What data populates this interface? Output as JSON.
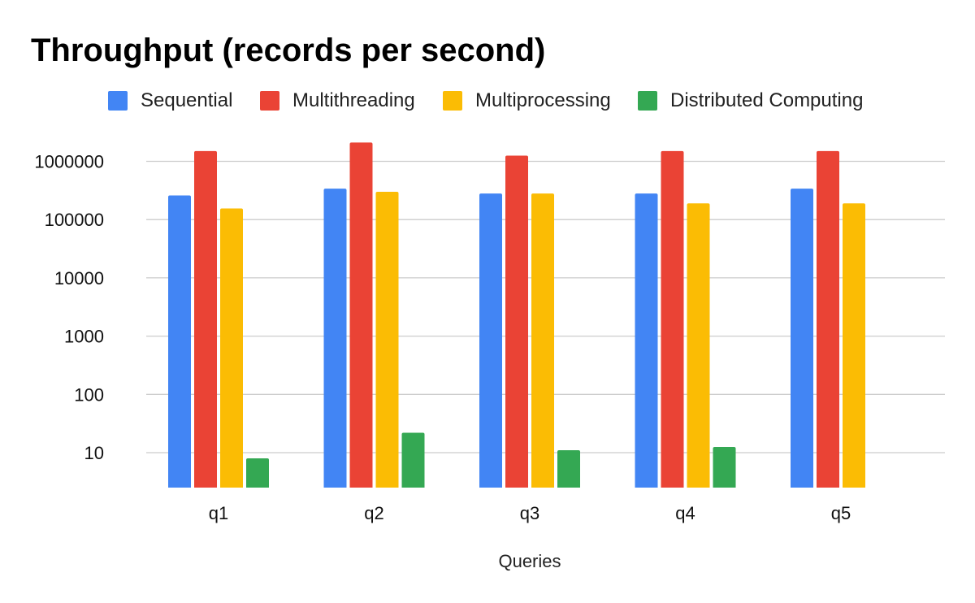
{
  "chart_data": {
    "type": "bar",
    "title": "Throughput (records per second)",
    "xlabel": "Queries",
    "ylabel": "",
    "yscale": "log",
    "ylim": [
      2.5,
      2000000
    ],
    "yticks": [
      "10",
      "100",
      "1000",
      "10000",
      "100000",
      "1000000"
    ],
    "grid": true,
    "legend_position": "top",
    "categories": [
      "q1",
      "q2",
      "q3",
      "q4",
      "q5"
    ],
    "series": [
      {
        "name": "Sequential",
        "color": "#4285f4",
        "values": [
          260000,
          340000,
          280000,
          280000,
          340000
        ]
      },
      {
        "name": "Multithreading",
        "color": "#ea4335",
        "values": [
          1500000,
          2100000,
          1250000,
          1500000,
          1500000
        ]
      },
      {
        "name": "Multiprocessing",
        "color": "#fbbc04",
        "values": [
          155000,
          300000,
          280000,
          190000,
          190000
        ]
      },
      {
        "name": "Distributed Computing",
        "color": "#34a853",
        "values": [
          8,
          22,
          11,
          12.5,
          null
        ]
      }
    ]
  }
}
